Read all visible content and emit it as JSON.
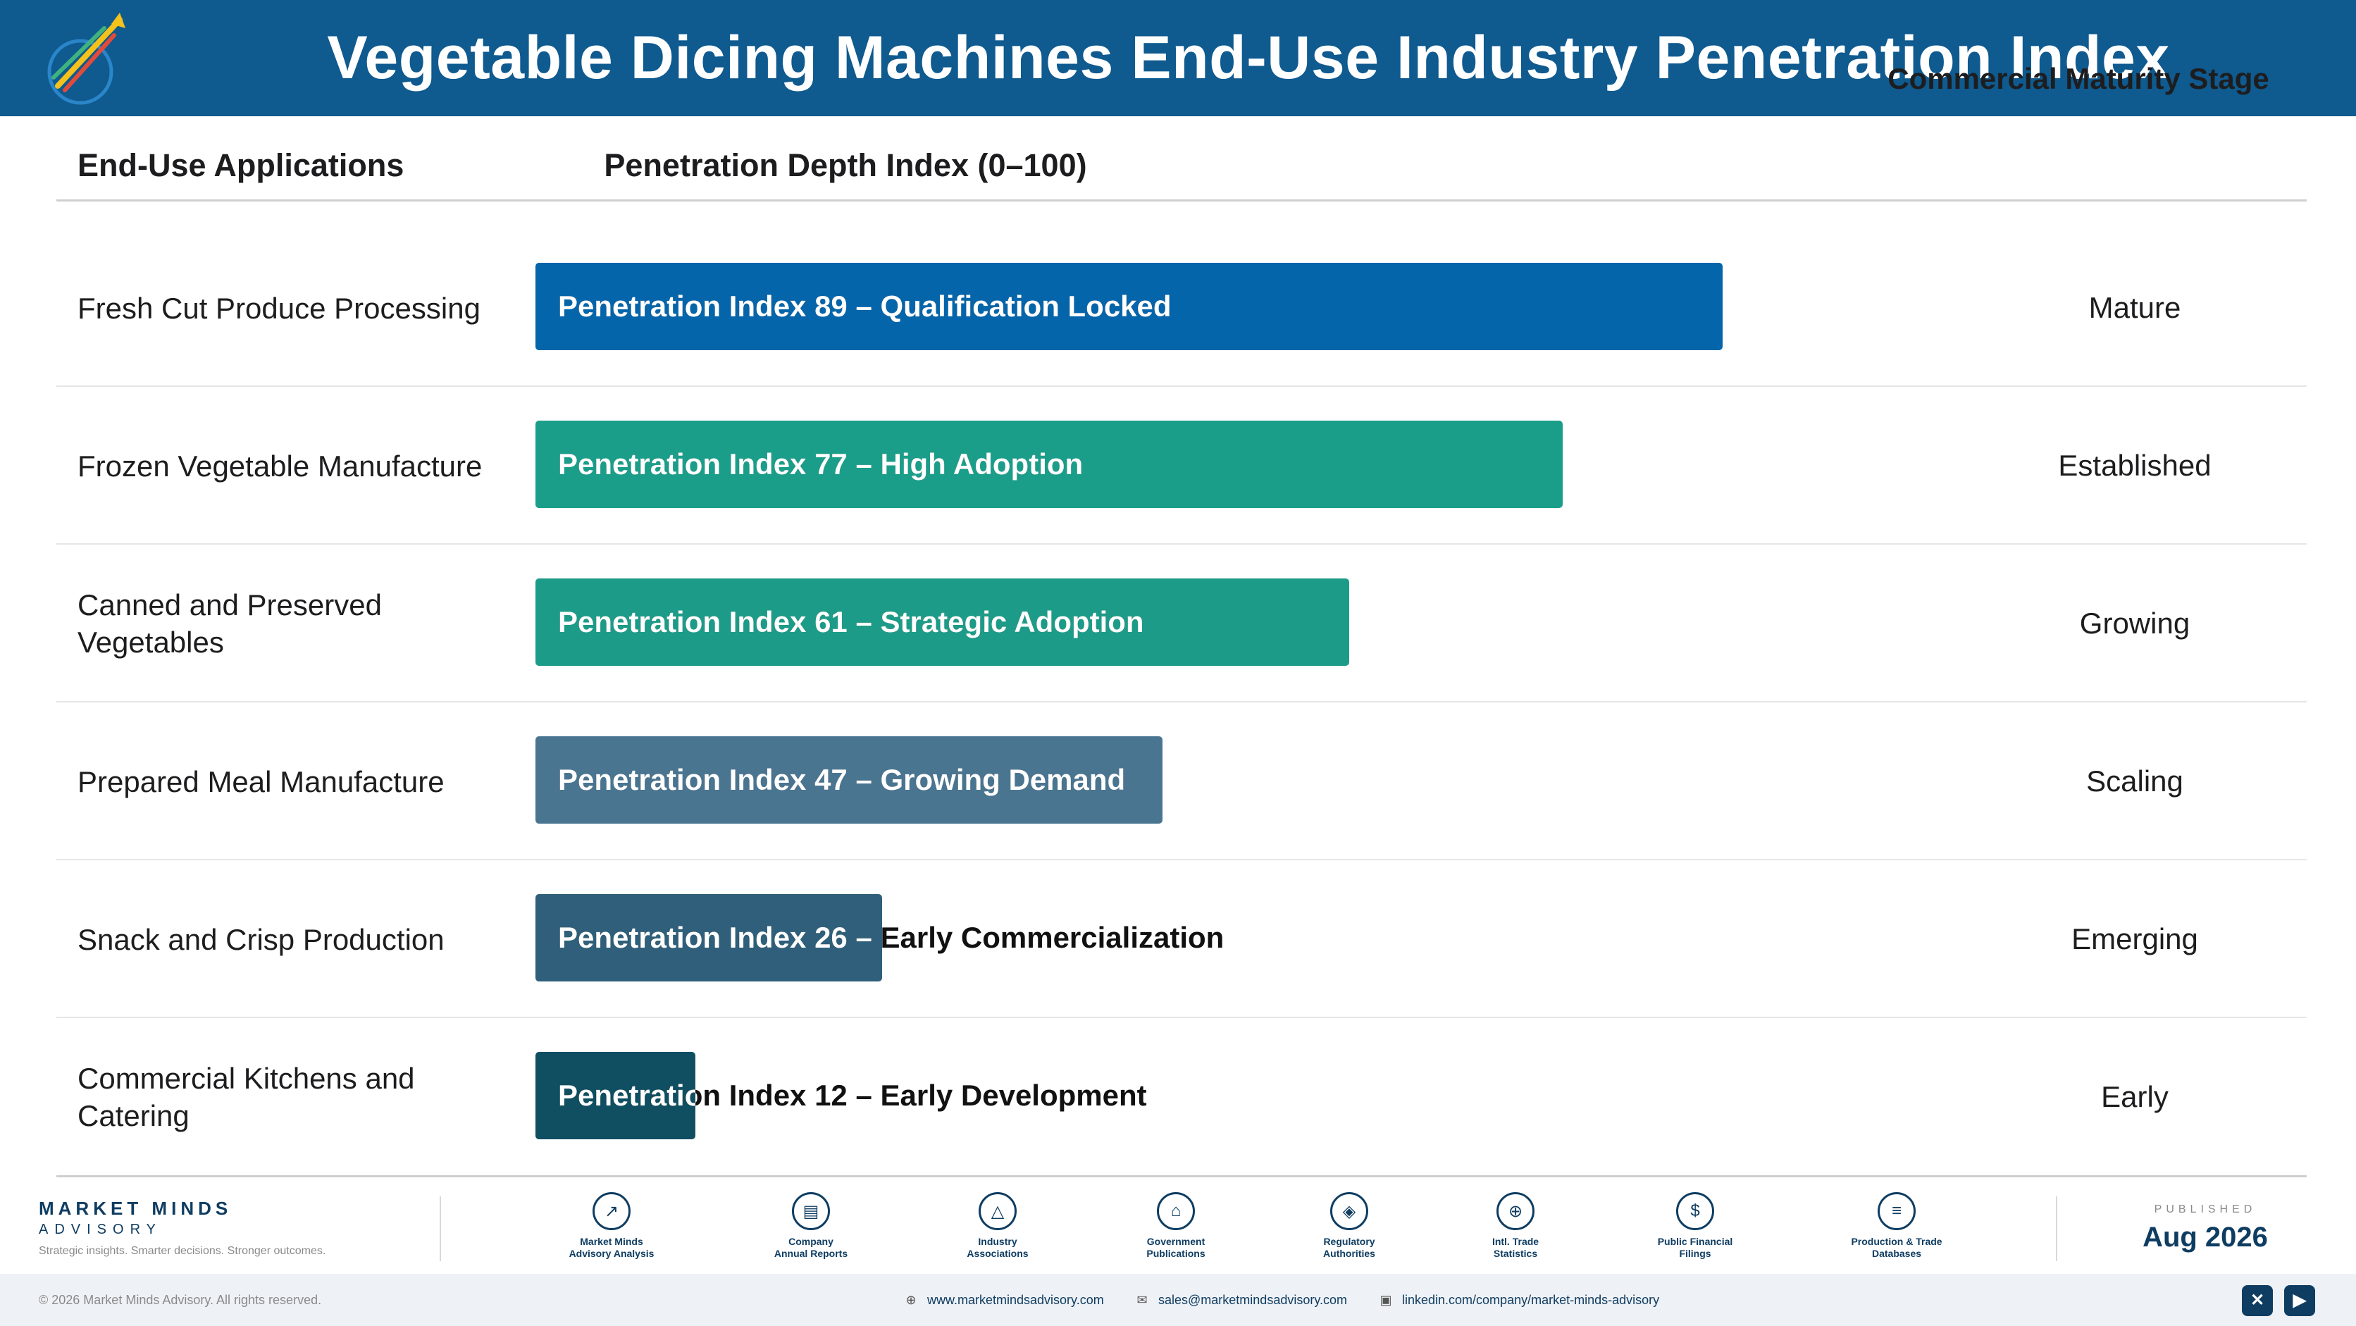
{
  "header": {
    "title": "Vegetable Dicing Machines End-Use Industry Penetration Index"
  },
  "columns": {
    "applications": "End-Use Applications",
    "depth": "Penetration Depth Index (0–100)",
    "stage": "Commercial Maturity Stage"
  },
  "chart_data": {
    "type": "bar",
    "orientation": "horizontal",
    "xlim": [
      0,
      100
    ],
    "categories": [
      "Fresh Cut Produce Processing",
      "Frozen Vegetable Manufacture",
      "Canned and Preserved Vegetables",
      "Prepared Meal Manufacture",
      "Snack and Crisp Production",
      "Commercial Kitchens and Catering"
    ],
    "values": [
      89,
      77,
      61,
      47,
      26,
      12
    ],
    "bar_labels": [
      "Penetration Index 89 – Qualification Locked",
      "Penetration Index 77 – High Adoption",
      "Penetration Index 61 – Strategic Adoption",
      "Penetration Index 47 – Growing Demand",
      "Penetration Index 26 – Early Commercialization",
      "Penetration Index 12 – Early Development"
    ],
    "stages": [
      "Mature",
      "Established",
      "Growing",
      "Scaling",
      "Emerging",
      "Early"
    ],
    "colors": [
      "#0565ab",
      "#1a9e8a",
      "#1c9c88",
      "#4a7591",
      "#2f5f7a",
      "#0f4f61"
    ]
  },
  "footer": {
    "brand_name": "MARKET MINDS",
    "brand_sub": "ADVISORY",
    "brand_tagline": "Strategic insights. Smarter decisions. Stronger outcomes.",
    "sources": [
      {
        "label": "Market Minds\nAdvisory Analysis",
        "icon": "chart-icon"
      },
      {
        "label": "Company\nAnnual Reports",
        "icon": "document-icon"
      },
      {
        "label": "Industry\nAssociations",
        "icon": "network-icon"
      },
      {
        "label": "Government\nPublications",
        "icon": "building-icon"
      },
      {
        "label": "Regulatory\nAuthorities",
        "icon": "shield-icon"
      },
      {
        "label": "Intl. Trade\nStatistics",
        "icon": "globe-icon"
      },
      {
        "label": "Public Financial\nFilings",
        "icon": "dollar-icon"
      },
      {
        "label": "Production & Trade\nDatabases",
        "icon": "database-icon"
      }
    ],
    "published_label": "PUBLISHED",
    "published_date": "Aug 2026",
    "copyright": "© 2026 Market Minds Advisory. All rights reserved.",
    "website": "www.marketmindsadvisory.com",
    "email": "sales@marketmindsadvisory.com",
    "linkedin": "linkedin.com/company/market-minds-advisory"
  }
}
